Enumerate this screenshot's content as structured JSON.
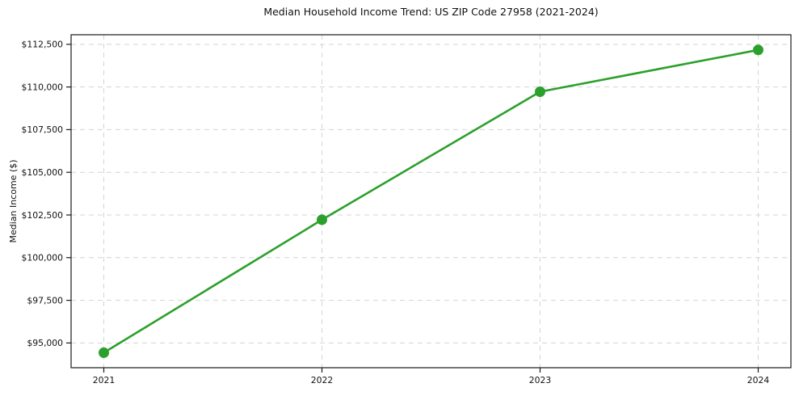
{
  "figure": {
    "background": "#ffffff"
  },
  "chart_data": {
    "type": "line",
    "title": "Median Household Income Trend: US ZIP Code 27958 (2021-2024)",
    "xlabel": "",
    "ylabel": "Median Income ($)",
    "x": [
      2021,
      2022,
      2023,
      2024
    ],
    "series": [
      {
        "name": "Median Household Income",
        "values": [
          94430,
          102220,
          109720,
          112170
        ]
      }
    ],
    "x_ticks": [
      {
        "value": 2021,
        "label": "2021"
      },
      {
        "value": 2022,
        "label": "2022"
      },
      {
        "value": 2023,
        "label": "2023"
      },
      {
        "value": 2024,
        "label": "2024"
      }
    ],
    "y_ticks": [
      {
        "value": 95000,
        "label": "$95,000"
      },
      {
        "value": 97500,
        "label": "$97,500"
      },
      {
        "value": 100000,
        "label": "$100,000"
      },
      {
        "value": 102500,
        "label": "$102,500"
      },
      {
        "value": 105000,
        "label": "$105,000"
      },
      {
        "value": 107500,
        "label": "$107,500"
      },
      {
        "value": 110000,
        "label": "$110,000"
      },
      {
        "value": 112500,
        "label": "$112,500"
      }
    ],
    "xlim": [
      2020.85,
      2024.15
    ],
    "ylim": [
      93550,
      113060
    ],
    "grid": true,
    "grid_style": "dashed",
    "legend": "none",
    "style": {
      "line_color": "#2ca02c",
      "marker": "circle",
      "marker_radius": 6.5,
      "line_width": 2.6,
      "grid_color": "#d4d4d4",
      "spine_color": "#1a1a1a",
      "tick_color": "#1a1a1a",
      "text_color": "#111111"
    }
  }
}
